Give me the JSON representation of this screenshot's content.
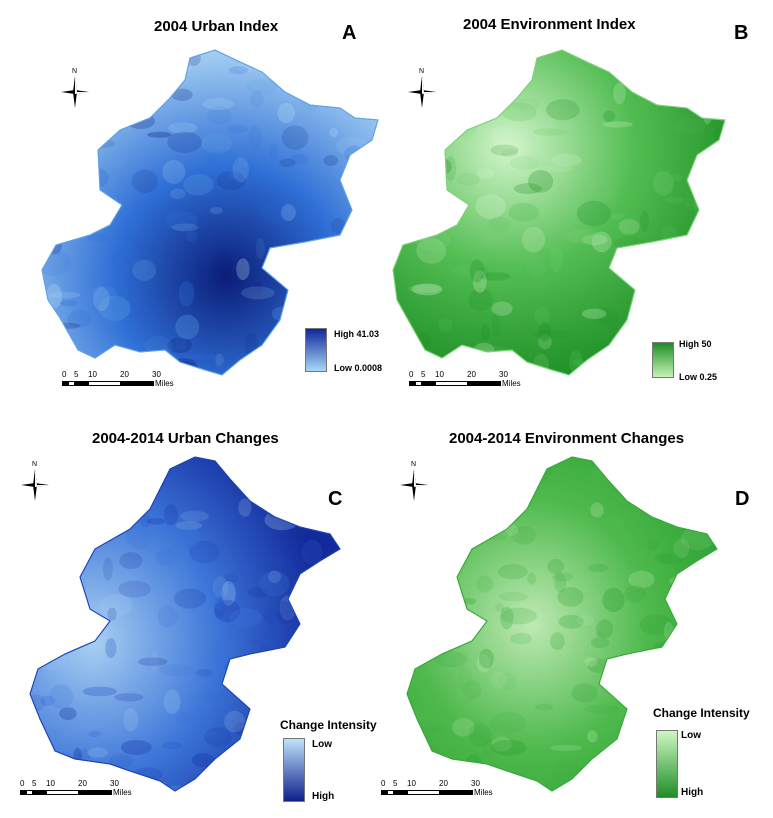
{
  "panels": [
    {
      "title": "2004 Urban Index",
      "letter": "A",
      "legend_high": "High 41.03",
      "legend_low": "Low 0.0008",
      "colors": {
        "dark": "#0b1d78",
        "mid": "#2f6fd6",
        "light": "#b6ddf6",
        "edge": "#5fa3e6"
      }
    },
    {
      "title": "2004 Environment Index",
      "letter": "B",
      "legend_high": "High 50",
      "legend_low": "Low 0.25",
      "colors": {
        "dark": "#1b8c24",
        "mid": "#52bd52",
        "light": "#d4f5cc",
        "edge": "#7fd17a"
      }
    },
    {
      "title": "2004-2014 Urban Changes",
      "letter": "C",
      "legend_heading": "Change Intensity",
      "legend_low": "Low",
      "legend_high": "High",
      "colors": {
        "dark": "#132a9a",
        "mid": "#3b74d8",
        "light": "#a9d0f3",
        "edge": "#1f44b8"
      }
    },
    {
      "title": "2004-2014 Environment Changes",
      "letter": "D",
      "legend_heading": "Change Intensity",
      "legend_low": "Low",
      "legend_high": "High",
      "colors": {
        "dark": "#239c2b",
        "mid": "#4fb94d",
        "light": "#bfeab5",
        "edge": "#3aa83c"
      }
    }
  ],
  "scalebar": {
    "ticks": [
      "0",
      "5",
      "10",
      "20",
      "30"
    ],
    "unit": "Miles"
  },
  "compass": {
    "north": "N"
  }
}
